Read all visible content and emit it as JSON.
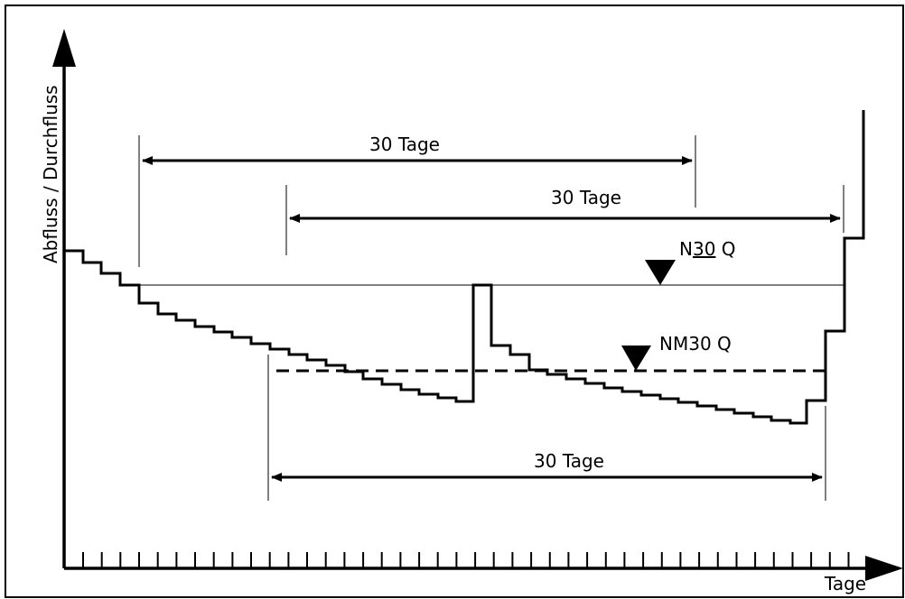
{
  "axes": {
    "y_label": "Abfluss / Durchfluss",
    "x_label": "Tage"
  },
  "spans": [
    {
      "label": "30 Tage"
    },
    {
      "label": "30 Tage"
    },
    {
      "label": "30 Tage"
    }
  ],
  "markers": {
    "n30q": {
      "prefix": "N",
      "bar": "30",
      "suffix": " Q"
    },
    "nm30q": {
      "label": "NM30 Q"
    }
  },
  "colors": {
    "line": "#000000",
    "background": "#ffffff"
  }
}
